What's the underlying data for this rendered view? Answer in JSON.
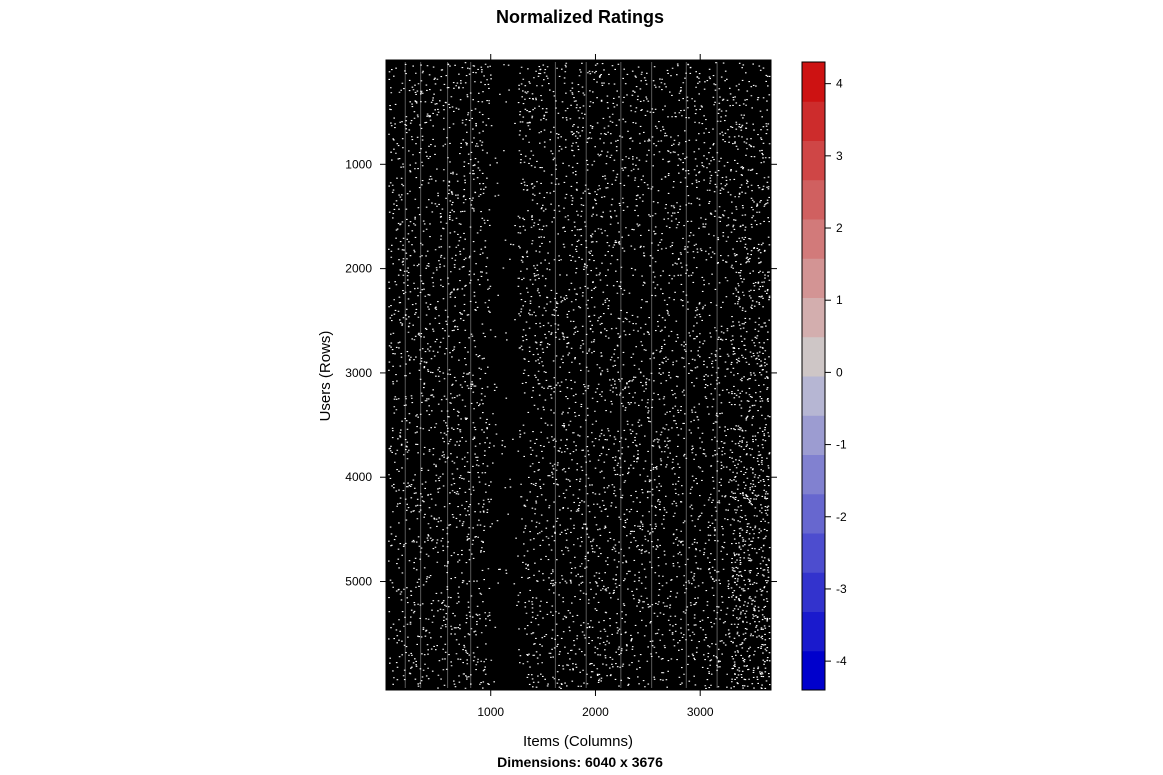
{
  "chart_data": {
    "type": "heatmap",
    "title": "Normalized Ratings",
    "xlabel": "Items (Columns)",
    "ylabel": "Users (Rows)",
    "subtitle": "Dimensions: 6040 x 3676",
    "rows": 6040,
    "cols": 3676,
    "xlim": [
      0,
      3676
    ],
    "ylim": [
      0,
      6040
    ],
    "x_ticks": [
      1000,
      2000,
      3000
    ],
    "x_tick_labels": [
      "1000",
      "2000",
      "3000"
    ],
    "y_ticks": [
      1000,
      2000,
      3000,
      4000,
      5000
    ],
    "y_tick_labels": [
      "1000",
      "2000",
      "3000",
      "4000",
      "5000"
    ],
    "colorbar": {
      "range": [
        -4.4,
        4.3
      ],
      "ticks": [
        -4,
        -3,
        -2,
        -1,
        0,
        1,
        2,
        3,
        4
      ],
      "tick_labels": [
        "-4",
        "-3",
        "-2",
        "-1",
        "0",
        "1",
        "2",
        "3",
        "4"
      ],
      "colors": [
        "#0000cc",
        "#1a1acd",
        "#3333cd",
        "#4d4dcf",
        "#6767cf",
        "#8181d0",
        "#9c9cd1",
        "#b6b6d3",
        "#cec6c6",
        "#d3aeae",
        "#d39494",
        "#d27a7a",
        "#d06060",
        "#cf4646",
        "#cd2c2c",
        "#cd1212"
      ]
    }
  }
}
